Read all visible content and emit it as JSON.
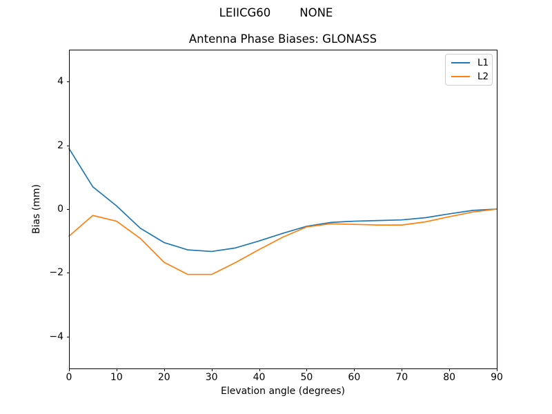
{
  "figure": {
    "suptitle": "LEIICG60        NONE",
    "background": "#ffffff"
  },
  "chart_data": {
    "type": "line",
    "title": "Antenna Phase Biases: GLONASS",
    "xlabel": "Elevation angle (degrees)",
    "ylabel": "Bias (mm)",
    "xlim": [
      0,
      90
    ],
    "ylim": [
      -5,
      5
    ],
    "xticks": [
      0,
      10,
      20,
      30,
      40,
      50,
      60,
      70,
      80,
      90
    ],
    "yticks": [
      -4,
      -2,
      0,
      2,
      4
    ],
    "grid": false,
    "legend": {
      "position": "upper right"
    },
    "x": [
      0,
      5,
      10,
      15,
      20,
      25,
      30,
      35,
      40,
      45,
      50,
      55,
      60,
      65,
      70,
      75,
      80,
      85,
      90
    ],
    "series": [
      {
        "name": "L1",
        "color": "#1f77b4",
        "values": [
          1.9,
          0.7,
          0.1,
          -0.6,
          -1.05,
          -1.28,
          -1.33,
          -1.22,
          -1.0,
          -0.76,
          -0.54,
          -0.42,
          -0.38,
          -0.36,
          -0.34,
          -0.27,
          -0.15,
          -0.04,
          0.0
        ]
      },
      {
        "name": "L2",
        "color": "#ff7f0e",
        "values": [
          -0.85,
          -0.2,
          -0.38,
          -0.92,
          -1.67,
          -2.05,
          -2.05,
          -1.68,
          -1.27,
          -0.88,
          -0.56,
          -0.46,
          -0.48,
          -0.5,
          -0.5,
          -0.4,
          -0.24,
          -0.09,
          0.0
        ]
      }
    ]
  }
}
